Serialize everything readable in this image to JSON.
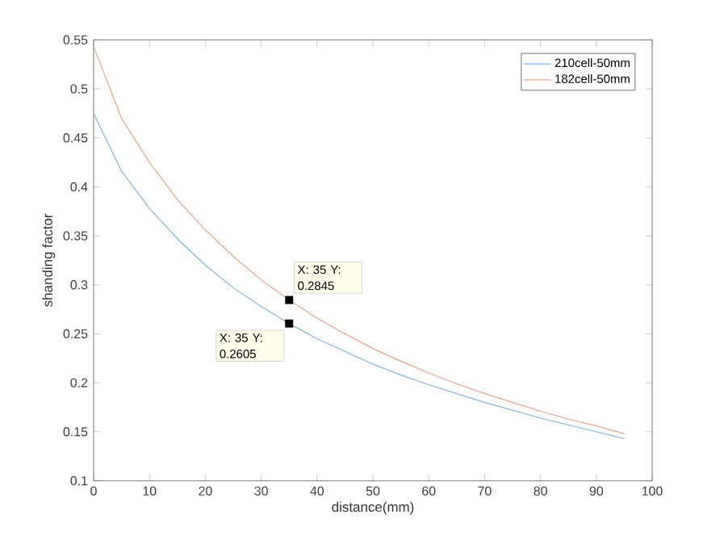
{
  "chart_data": {
    "type": "line",
    "xlabel": "distance(mm)",
    "ylabel": "shanding factor",
    "x": [
      0,
      5,
      10,
      15,
      20,
      25,
      30,
      35,
      40,
      45,
      50,
      55,
      60,
      65,
      70,
      75,
      80,
      85,
      90,
      95
    ],
    "series": [
      {
        "name": "210cell-50mm",
        "color": "#7fb2dc",
        "values": [
          0.475,
          0.416,
          0.378,
          0.347,
          0.32,
          0.297,
          0.278,
          0.2605,
          0.245,
          0.232,
          0.219,
          0.208,
          0.198,
          0.189,
          0.18,
          0.172,
          0.164,
          0.157,
          0.15,
          0.143
        ]
      },
      {
        "name": "182cell-50mm",
        "color": "#e3a58a",
        "values": [
          0.543,
          0.47,
          0.425,
          0.387,
          0.356,
          0.329,
          0.305,
          0.2845,
          0.266,
          0.25,
          0.235,
          0.222,
          0.21,
          0.199,
          0.189,
          0.18,
          0.171,
          0.163,
          0.156,
          0.148
        ]
      }
    ],
    "xlim": [
      0,
      100
    ],
    "ylim": [
      0.1,
      0.55
    ],
    "xticks": [
      0,
      10,
      20,
      30,
      40,
      50,
      60,
      70,
      80,
      90,
      100
    ],
    "yticks": [
      0.1,
      0.15,
      0.2,
      0.25,
      0.3,
      0.35,
      0.4,
      0.45,
      0.5,
      0.55
    ],
    "annotations": [
      {
        "text": "X: 35 Y: 0.2845",
        "x": 35,
        "y": 0.2845
      },
      {
        "text": "X: 35 Y: 0.2605",
        "x": 35,
        "y": 0.2605
      }
    ],
    "legend": "top right",
    "grid": false,
    "marker": "none",
    "line_style": "solid"
  }
}
